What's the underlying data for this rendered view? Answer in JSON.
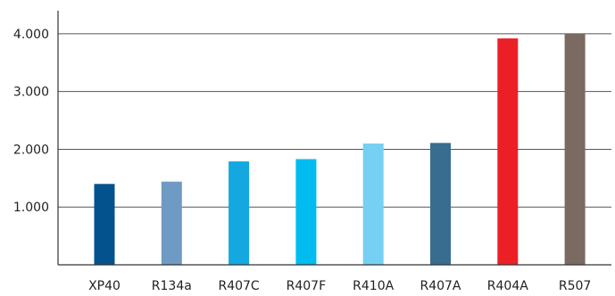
{
  "chart_data": {
    "type": "bar",
    "title": "",
    "xlabel": "",
    "ylabel": "",
    "categories": [
      "XP40",
      "R134a",
      "R407C",
      "R407F",
      "R410A",
      "R407A",
      "R404A",
      "R507"
    ],
    "values": [
      1400,
      1440,
      1790,
      1830,
      2100,
      2110,
      3920,
      4000
    ],
    "colors": [
      "#03528d",
      "#6f9ac3",
      "#13a8e0",
      "#00bcf1",
      "#76d0f4",
      "#386d8f",
      "#ec1f27",
      "#7b6a62"
    ],
    "ylim": [
      0,
      4400
    ],
    "yticks": [
      1000,
      2000,
      3000,
      4000
    ],
    "ytick_labels": [
      "1.000",
      "2.000",
      "3.000",
      "4.000"
    ],
    "grid": true,
    "legend": "none"
  }
}
